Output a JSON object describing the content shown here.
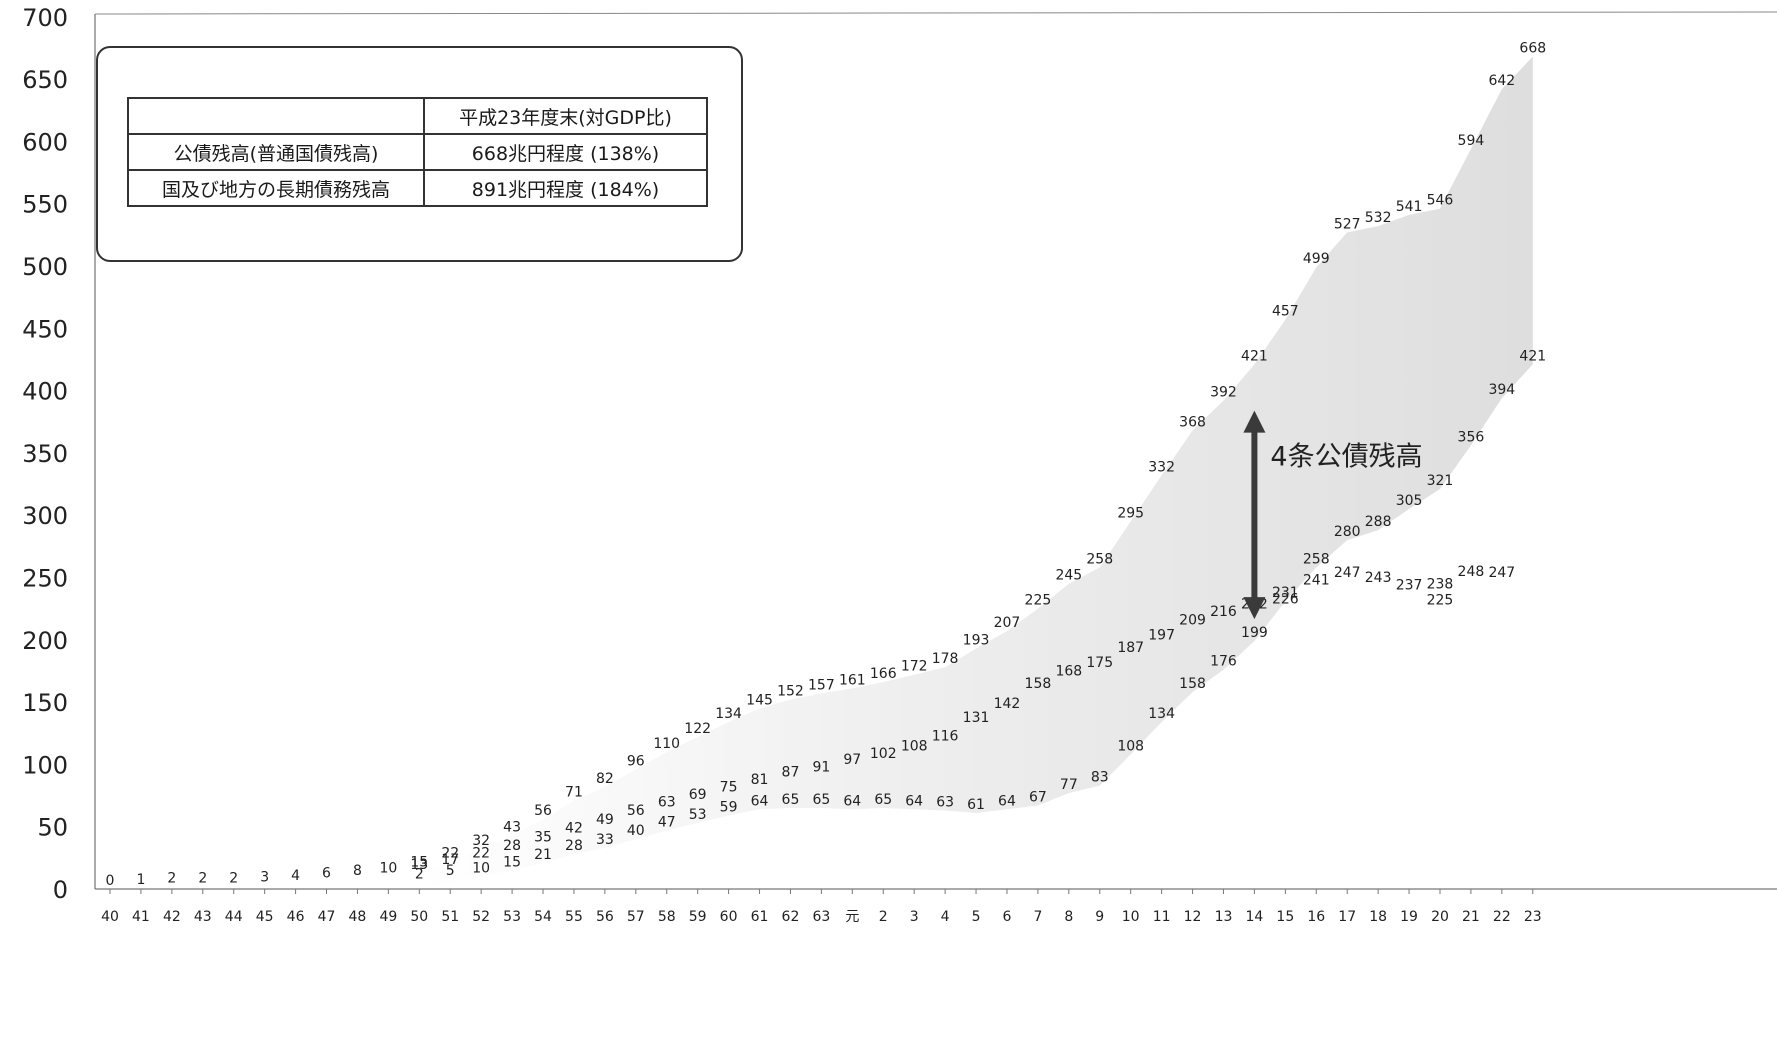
{
  "legend_table": {
    "header": [
      "",
      "平成23年度末(対GDP比)"
    ],
    "rows": [
      [
        "公債残高(普通国債残高)",
        "668兆円程度 (138%)"
      ],
      [
        "国及び地方の長期債務残高",
        "891兆円程度 (184%)"
      ]
    ]
  },
  "chart_data": {
    "type": "line",
    "title": "",
    "xlabel": "",
    "ylabel": "",
    "ylim": [
      0,
      700
    ],
    "yticks": [
      0,
      50,
      100,
      150,
      200,
      250,
      300,
      350,
      400,
      450,
      500,
      550,
      600,
      650,
      700
    ],
    "categories": [
      "40",
      "41",
      "42",
      "43",
      "44",
      "45",
      "46",
      "47",
      "48",
      "49",
      "50",
      "51",
      "52",
      "53",
      "54",
      "55",
      "56",
      "57",
      "58",
      "59",
      "60",
      "61",
      "62",
      "63",
      "元",
      "2",
      "3",
      "4",
      "5",
      "6",
      "7",
      "8",
      "9",
      "10",
      "11",
      "12",
      "13",
      "14",
      "15",
      "16",
      "17",
      "18",
      "19",
      "20",
      "21",
      "22",
      "23"
    ],
    "series": [
      {
        "values": [
          0,
          1,
          2,
          2,
          2,
          3,
          4,
          6,
          8,
          10,
          15,
          22,
          32,
          43,
          56,
          71,
          82,
          96,
          110,
          122,
          134,
          145,
          152,
          157,
          161,
          166,
          172,
          178,
          193,
          207,
          225,
          245,
          258,
          295,
          332,
          368,
          392,
          421,
          457,
          499,
          527,
          532,
          541,
          546,
          594,
          642,
          668
        ]
      },
      {
        "values": [
          null,
          null,
          null,
          null,
          null,
          null,
          null,
          null,
          null,
          null,
          13,
          17,
          22,
          28,
          35,
          42,
          49,
          56,
          63,
          69,
          75,
          81,
          87,
          91,
          97,
          102,
          108,
          116,
          131,
          142,
          158,
          168,
          175,
          187,
          197,
          209,
          216,
          222,
          226,
          241,
          247,
          243,
          237,
          238,
          248,
          247,
          null
        ]
      },
      {
        "values": [
          null,
          null,
          null,
          null,
          null,
          null,
          null,
          null,
          null,
          null,
          2,
          5,
          10,
          15,
          21,
          28,
          33,
          40,
          47,
          53,
          59,
          64,
          65,
          65,
          64,
          65,
          64,
          63,
          61,
          64,
          67,
          77,
          83,
          108,
          134,
          158,
          176,
          199,
          231,
          258,
          280,
          288,
          305,
          321,
          356,
          394,
          421
        ]
      },
      {
        "values": [
          null,
          null,
          null,
          null,
          null,
          null,
          null,
          null,
          null,
          null,
          null,
          null,
          null,
          null,
          null,
          null,
          null,
          null,
          null,
          null,
          null,
          null,
          null,
          null,
          null,
          null,
          null,
          null,
          null,
          null,
          null,
          null,
          null,
          null,
          null,
          null,
          null,
          null,
          null,
          null,
          null,
          null,
          null,
          225,
          null,
          null,
          null
        ]
      }
    ],
    "annotation": {
      "text": "4条公債残高",
      "x": "14",
      "y_range": [
        231,
        392
      ]
    },
    "colors": {
      "ink": "#222222",
      "shade": "#d9d9d9",
      "arrow": "#3a3a3a"
    }
  }
}
